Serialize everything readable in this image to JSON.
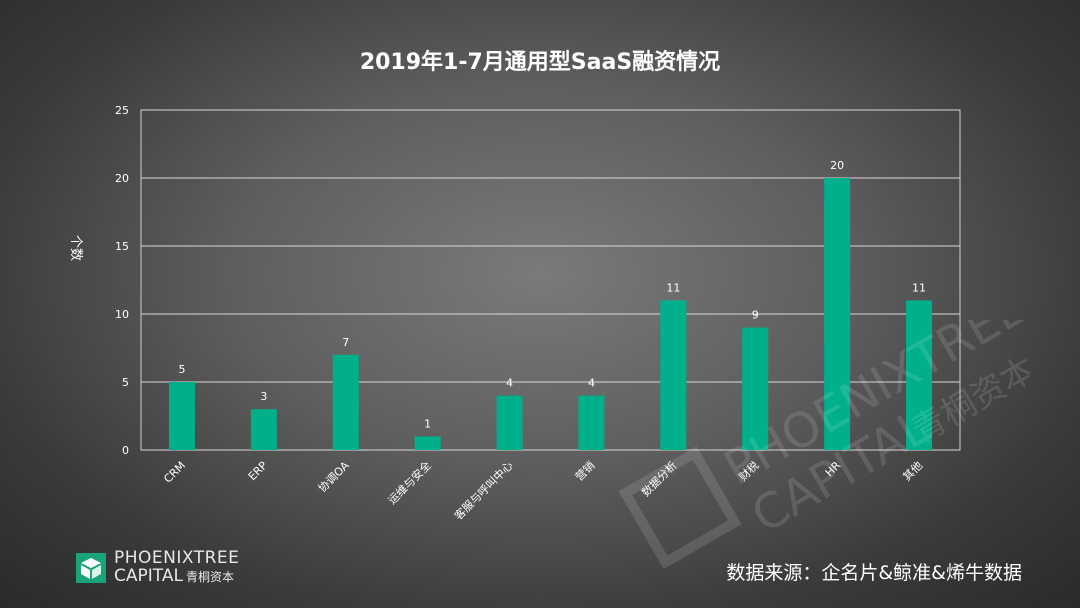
{
  "chart_data": {
    "type": "bar",
    "title": "2019年1-7月通用型SaaS融资情况",
    "ylabel": "个数",
    "xlabel": "",
    "ylim": [
      0,
      25
    ],
    "yticks": [
      0,
      5,
      10,
      15,
      20,
      25
    ],
    "grid": true,
    "categories": [
      "CRM",
      "ERP",
      "协调OA",
      "运维与安全",
      "客服与呼叫中心",
      "营销",
      "数据分析",
      "财税",
      "HR",
      "其他"
    ],
    "values": [
      5,
      3,
      7,
      1,
      4,
      4,
      11,
      9,
      20,
      11
    ],
    "bar_color": "#00B08B"
  },
  "logo": {
    "line1": "PHOENIXTREE",
    "line2": "CAPITAL",
    "line2_cn": "青桐资本"
  },
  "watermark": {
    "line1": "PHOENIXTREE",
    "line2": "CAPITAL",
    "cn": "青桐资本"
  },
  "source_note": "数据来源：企名片&鲸准&烯牛数据"
}
